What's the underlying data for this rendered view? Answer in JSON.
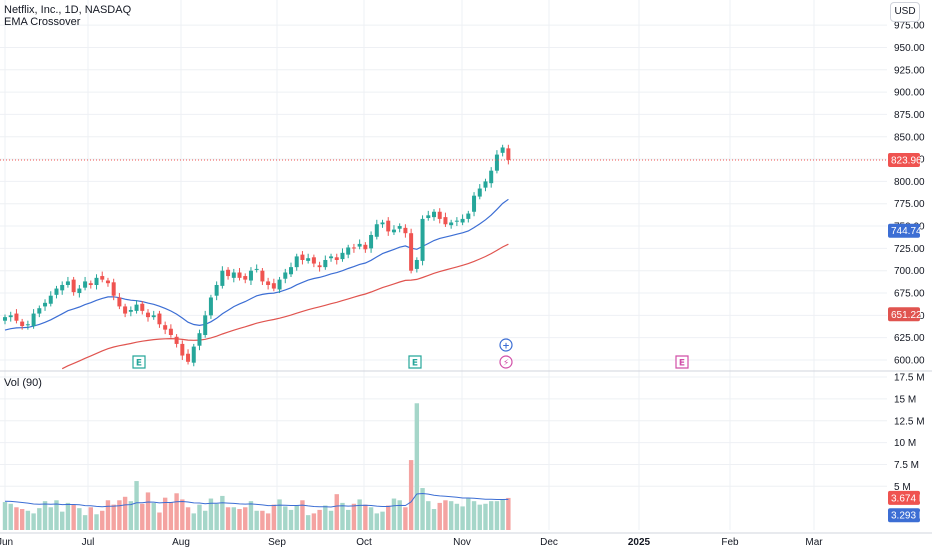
{
  "header": {
    "title": "Netflix, Inc., 1D, NASDAQ",
    "study": "EMA Crossover",
    "currency": "USD",
    "volume_legend": "Vol (90)"
  },
  "colors": {
    "up": "#26a69a",
    "down": "#ef5350",
    "vol_up": "#a5d6c9",
    "vol_down": "#f4a3a1",
    "ema_fast": "#3c6ed4",
    "ema_slow": "#e0544f",
    "last_price_line": "#ef5350",
    "grid": "#eef0f4",
    "earnings_marker": "#26a69a",
    "event_marker": "#d14fa8"
  },
  "chart_data": {
    "type": "candlestick",
    "symbol": "Netflix, Inc., 1D, NASDAQ",
    "x_ticks": [
      "Jun",
      "Jul",
      "Aug",
      "Sep",
      "Oct",
      "Nov",
      "Dec",
      "2025",
      "Feb",
      "Mar"
    ],
    "price_axis": {
      "ticks": [
        "975.00",
        "950.00",
        "925.00",
        "900.00",
        "875.00",
        "850.00",
        "825.00",
        "800.00",
        "775.00",
        "750.00",
        "725.00",
        "700.00",
        "675.00",
        "650.00",
        "625.00",
        "600.00"
      ],
      "range": [
        590,
        995
      ],
      "last_price": "823.96",
      "ema_fast_value": "744.74",
      "ema_slow_value": "651.22"
    },
    "volume_axis": {
      "ticks": [
        "17.5 M",
        "15 M",
        "12.5 M",
        "10 M",
        "7.5 M",
        "5 M"
      ],
      "range": [
        0,
        17.5
      ],
      "last_volume": "3.674 M",
      "volume_ma": "3.293 M"
    },
    "series_closes": [
      648,
      650,
      644,
      638,
      640,
      652,
      658,
      664,
      672,
      680,
      684,
      688,
      676,
      680,
      688,
      684,
      692,
      690,
      686,
      672,
      660,
      652,
      656,
      662,
      655,
      648,
      650,
      640,
      634,
      628,
      618,
      605,
      598,
      615,
      630,
      650,
      670,
      684,
      700,
      694,
      698,
      692,
      690,
      700,
      702,
      688,
      684,
      680,
      690,
      698,
      704,
      716,
      712,
      714,
      708,
      704,
      712,
      716,
      712,
      720,
      726,
      725,
      730,
      724,
      740,
      752,
      754,
      744,
      746,
      750,
      742,
      700,
      712,
      758,
      762,
      766,
      758,
      752,
      754,
      756,
      758,
      764,
      784,
      792,
      800,
      812,
      830,
      838,
      824
    ],
    "series_volumes": [
      3.2,
      3.0,
      2.6,
      2.4,
      2.2,
      1.9,
      2.5,
      3.3,
      2.6,
      3.4,
      2.1,
      3.1,
      2.9,
      2.5,
      1.7,
      2.6,
      1.8,
      2.2,
      3.4,
      2.9,
      3.4,
      3.8,
      3.3,
      5.6,
      3.0,
      4.3,
      3.1,
      2.0,
      3.7,
      3.2,
      4.2,
      3.5,
      2.6,
      1.9,
      2.9,
      2.2,
      3.6,
      3.0,
      3.9,
      2.6,
      2.6,
      2.4,
      2.6,
      3.3,
      2.2,
      2.2,
      1.9,
      2.9,
      3.5,
      2.7,
      2.3,
      2.8,
      3.4,
      1.7,
      1.9,
      2.3,
      2.8,
      2.2,
      4.1,
      3.1,
      2.3,
      3.0,
      3.5,
      2.9,
      2.6,
      1.9,
      2.1,
      2.8,
      3.6,
      3.4,
      2.6,
      8.0,
      14.5,
      4.8,
      3.3,
      2.4,
      3.1,
      3.4,
      3.3,
      3.0,
      2.7,
      3.6,
      3.3,
      2.9,
      3.0,
      3.3,
      3.3,
      3.5,
      3.67
    ]
  },
  "markers": [
    {
      "label": "E",
      "type": "earnings"
    },
    {
      "label": "E",
      "type": "earnings"
    },
    {
      "label": "+",
      "type": "plus"
    },
    {
      "label": "⚡",
      "type": "dividend"
    },
    {
      "label": "E",
      "type": "future-earnings"
    }
  ]
}
